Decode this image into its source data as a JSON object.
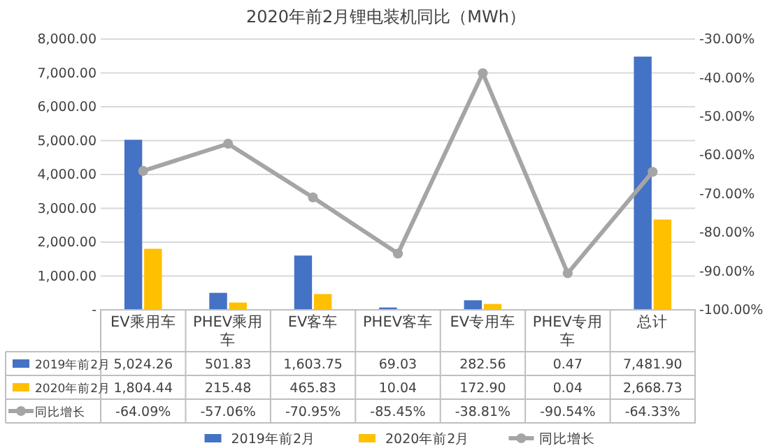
{
  "chart_data": {
    "type": "bar",
    "title": "2020年前2月锂电装机同比（MWh）",
    "categories": [
      "EV乘用车",
      "PHEV乘用车",
      "EV客车",
      "PHEV客车",
      "EV专用车",
      "PHEV专用车",
      "总计"
    ],
    "series": [
      {
        "name": "2019年前2月",
        "color": "#4472c4",
        "values": [
          5024.26,
          501.83,
          1603.75,
          69.03,
          282.56,
          0.47,
          7481.9
        ],
        "value_labels": [
          "5,024.26",
          "501.83",
          "1,603.75",
          "69.03",
          "282.56",
          "0.47",
          "7,481.90"
        ]
      },
      {
        "name": "2020年前2月",
        "color": "#ffc000",
        "values": [
          1804.44,
          215.48,
          465.83,
          10.04,
          172.9,
          0.04,
          2668.73
        ],
        "value_labels": [
          "1,804.44",
          "215.48",
          "465.83",
          "10.04",
          "172.90",
          "0.04",
          "2,668.73"
        ]
      },
      {
        "name": "同比增长",
        "color": "#a5a5a5",
        "type": "line",
        "axis": "y2",
        "values": [
          -64.09,
          -57.06,
          -70.95,
          -85.45,
          -38.81,
          -90.54,
          -64.33
        ],
        "value_labels": [
          "-64.09%",
          "-57.06%",
          "-70.95%",
          "-85.45%",
          "-38.81%",
          "-90.54%",
          "-64.33%"
        ]
      }
    ],
    "ylim": [
      0,
      8000
    ],
    "yticks": [
      {
        "value": 0,
        "label": "-"
      },
      {
        "value": 1000,
        "label": "1,000.00"
      },
      {
        "value": 2000,
        "label": "2,000.00"
      },
      {
        "value": 3000,
        "label": "3,000.00"
      },
      {
        "value": 4000,
        "label": "4,000.00"
      },
      {
        "value": 5000,
        "label": "5,000.00"
      },
      {
        "value": 6000,
        "label": "6,000.00"
      },
      {
        "value": 7000,
        "label": "7,000.00"
      },
      {
        "value": 8000,
        "label": "8,000.00"
      }
    ],
    "y2lim": [
      -100,
      -30
    ],
    "y2ticks": [
      {
        "value": -100,
        "label": "-100.00%"
      },
      {
        "value": -90,
        "label": "-90.00%"
      },
      {
        "value": -80,
        "label": "-80.00%"
      },
      {
        "value": -70,
        "label": "-70.00%"
      },
      {
        "value": -60,
        "label": "-60.00%"
      },
      {
        "value": -50,
        "label": "-50.00%"
      },
      {
        "value": -40,
        "label": "-40.00%"
      },
      {
        "value": -30,
        "label": "-30.00%"
      }
    ],
    "grid": "y",
    "legend": "bottom",
    "marker": "circle"
  }
}
